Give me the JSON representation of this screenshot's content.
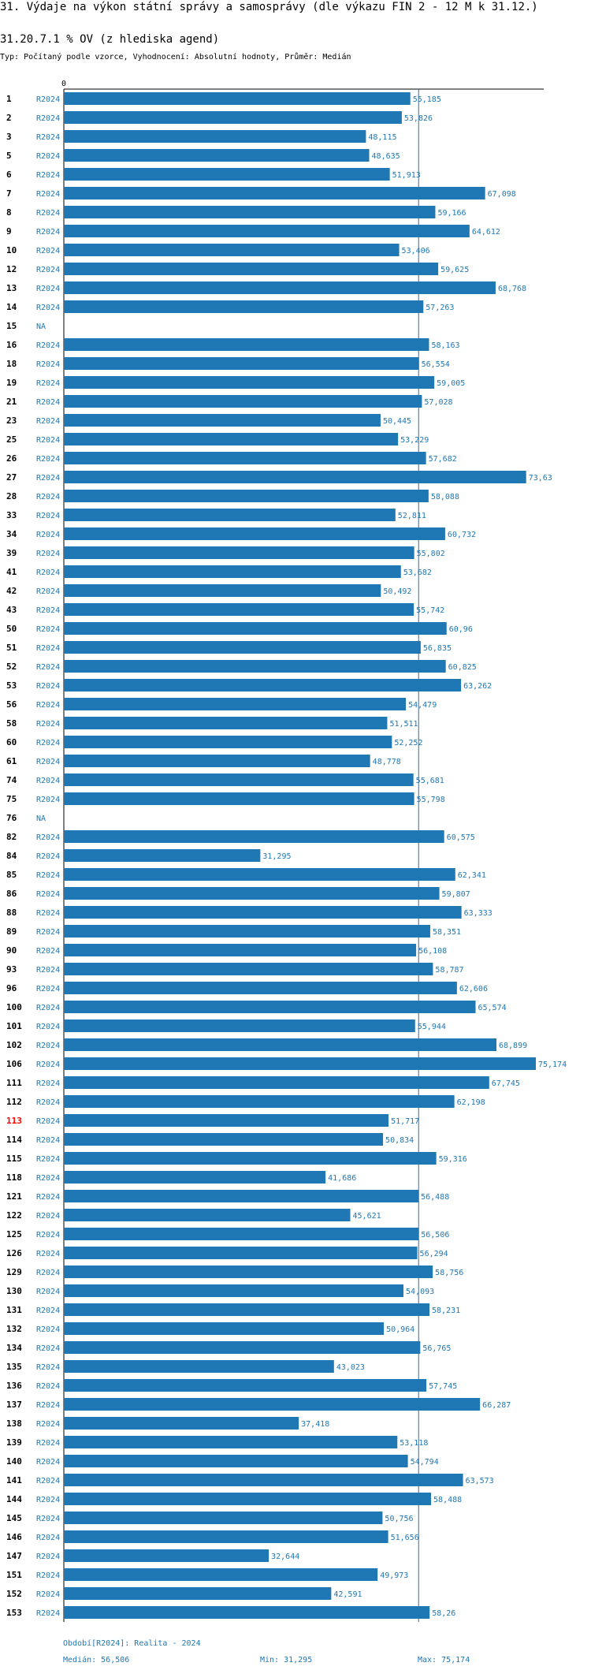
{
  "header": {
    "title": "31. Výdaje na výkon státní správy a samosprávy (dle výkazu FIN 2 - 12 M k 31.12.)",
    "subtitle": "31.20.7.1 % OV (z hlediska agend)",
    "type_line": "Typ: Počítaný podle vzorce, Vyhodnocení: Absolutní hodnoty, Průměr: Medián"
  },
  "chart_data": {
    "type": "bar",
    "orientation": "horizontal",
    "title": "31.20.7.1 % OV (z hlediska agend)",
    "x_tick_label": "0",
    "xlim": [
      0,
      75.174
    ],
    "reference_line": {
      "name": "Medián",
      "value": 56.506
    },
    "highlight_id": "113",
    "colors": {
      "bar": "#1f77b4",
      "highlight": "#ff0000",
      "median_line": "#1f77b4"
    },
    "rows": [
      {
        "id": "1",
        "period": "R2024",
        "value": 55.185,
        "label": "55,185"
      },
      {
        "id": "2",
        "period": "R2024",
        "value": 53.826,
        "label": "53,826"
      },
      {
        "id": "3",
        "period": "R2024",
        "value": 48.115,
        "label": "48,115"
      },
      {
        "id": "5",
        "period": "R2024",
        "value": 48.635,
        "label": "48,635"
      },
      {
        "id": "6",
        "period": "R2024",
        "value": 51.913,
        "label": "51,913"
      },
      {
        "id": "7",
        "period": "R2024",
        "value": 67.098,
        "label": "67,098"
      },
      {
        "id": "8",
        "period": "R2024",
        "value": 59.166,
        "label": "59,166"
      },
      {
        "id": "9",
        "period": "R2024",
        "value": 64.612,
        "label": "64,612"
      },
      {
        "id": "10",
        "period": "R2024",
        "value": 53.406,
        "label": "53,406"
      },
      {
        "id": "12",
        "period": "R2024",
        "value": 59.625,
        "label": "59,625"
      },
      {
        "id": "13",
        "period": "R2024",
        "value": 68.768,
        "label": "68,768"
      },
      {
        "id": "14",
        "period": "R2024",
        "value": 57.263,
        "label": "57,263"
      },
      {
        "id": "15",
        "period": "NA",
        "value": null,
        "label": ""
      },
      {
        "id": "16",
        "period": "R2024",
        "value": 58.163,
        "label": "58,163"
      },
      {
        "id": "18",
        "period": "R2024",
        "value": 56.554,
        "label": "56,554"
      },
      {
        "id": "19",
        "period": "R2024",
        "value": 59.005,
        "label": "59,005"
      },
      {
        "id": "21",
        "period": "R2024",
        "value": 57.028,
        "label": "57,028"
      },
      {
        "id": "23",
        "period": "R2024",
        "value": 50.445,
        "label": "50,445"
      },
      {
        "id": "25",
        "period": "R2024",
        "value": 53.229,
        "label": "53,229"
      },
      {
        "id": "26",
        "period": "R2024",
        "value": 57.682,
        "label": "57,682"
      },
      {
        "id": "27",
        "period": "R2024",
        "value": 73.63,
        "label": "73,63"
      },
      {
        "id": "28",
        "period": "R2024",
        "value": 58.088,
        "label": "58,088"
      },
      {
        "id": "33",
        "period": "R2024",
        "value": 52.811,
        "label": "52,811"
      },
      {
        "id": "34",
        "period": "R2024",
        "value": 60.732,
        "label": "60,732"
      },
      {
        "id": "39",
        "period": "R2024",
        "value": 55.802,
        "label": "55,802"
      },
      {
        "id": "41",
        "period": "R2024",
        "value": 53.682,
        "label": "53,682"
      },
      {
        "id": "42",
        "period": "R2024",
        "value": 50.492,
        "label": "50,492"
      },
      {
        "id": "43",
        "period": "R2024",
        "value": 55.742,
        "label": "55,742"
      },
      {
        "id": "50",
        "period": "R2024",
        "value": 60.96,
        "label": "60,96"
      },
      {
        "id": "51",
        "period": "R2024",
        "value": 56.835,
        "label": "56,835"
      },
      {
        "id": "52",
        "period": "R2024",
        "value": 60.825,
        "label": "60,825"
      },
      {
        "id": "53",
        "period": "R2024",
        "value": 63.262,
        "label": "63,262"
      },
      {
        "id": "56",
        "period": "R2024",
        "value": 54.479,
        "label": "54,479"
      },
      {
        "id": "58",
        "period": "R2024",
        "value": 51.511,
        "label": "51,511"
      },
      {
        "id": "60",
        "period": "R2024",
        "value": 52.252,
        "label": "52,252"
      },
      {
        "id": "61",
        "period": "R2024",
        "value": 48.778,
        "label": "48,778"
      },
      {
        "id": "74",
        "period": "R2024",
        "value": 55.681,
        "label": "55,681"
      },
      {
        "id": "75",
        "period": "R2024",
        "value": 55.798,
        "label": "55,798"
      },
      {
        "id": "76",
        "period": "NA",
        "value": null,
        "label": ""
      },
      {
        "id": "82",
        "period": "R2024",
        "value": 60.575,
        "label": "60,575"
      },
      {
        "id": "84",
        "period": "R2024",
        "value": 31.295,
        "label": "31,295"
      },
      {
        "id": "85",
        "period": "R2024",
        "value": 62.341,
        "label": "62,341"
      },
      {
        "id": "86",
        "period": "R2024",
        "value": 59.807,
        "label": "59,807"
      },
      {
        "id": "88",
        "period": "R2024",
        "value": 63.333,
        "label": "63,333"
      },
      {
        "id": "89",
        "period": "R2024",
        "value": 58.351,
        "label": "58,351"
      },
      {
        "id": "90",
        "period": "R2024",
        "value": 56.108,
        "label": "56,108"
      },
      {
        "id": "93",
        "period": "R2024",
        "value": 58.787,
        "label": "58,787"
      },
      {
        "id": "96",
        "period": "R2024",
        "value": 62.606,
        "label": "62,606"
      },
      {
        "id": "100",
        "period": "R2024",
        "value": 65.574,
        "label": "65,574"
      },
      {
        "id": "101",
        "period": "R2024",
        "value": 55.944,
        "label": "55,944"
      },
      {
        "id": "102",
        "period": "R2024",
        "value": 68.899,
        "label": "68,899"
      },
      {
        "id": "106",
        "period": "R2024",
        "value": 75.174,
        "label": "75,174"
      },
      {
        "id": "111",
        "period": "R2024",
        "value": 67.745,
        "label": "67,745"
      },
      {
        "id": "112",
        "period": "R2024",
        "value": 62.198,
        "label": "62,198"
      },
      {
        "id": "113",
        "period": "R2024",
        "value": 51.717,
        "label": "51,717"
      },
      {
        "id": "114",
        "period": "R2024",
        "value": 50.834,
        "label": "50,834"
      },
      {
        "id": "115",
        "period": "R2024",
        "value": 59.316,
        "label": "59,316"
      },
      {
        "id": "118",
        "period": "R2024",
        "value": 41.686,
        "label": "41,686"
      },
      {
        "id": "121",
        "period": "R2024",
        "value": 56.488,
        "label": "56,488"
      },
      {
        "id": "122",
        "period": "R2024",
        "value": 45.621,
        "label": "45,621"
      },
      {
        "id": "125",
        "period": "R2024",
        "value": 56.506,
        "label": "56,506"
      },
      {
        "id": "126",
        "period": "R2024",
        "value": 56.294,
        "label": "56,294"
      },
      {
        "id": "129",
        "period": "R2024",
        "value": 58.756,
        "label": "58,756"
      },
      {
        "id": "130",
        "period": "R2024",
        "value": 54.093,
        "label": "54,093"
      },
      {
        "id": "131",
        "period": "R2024",
        "value": 58.231,
        "label": "58,231"
      },
      {
        "id": "132",
        "period": "R2024",
        "value": 50.964,
        "label": "50,964"
      },
      {
        "id": "134",
        "period": "R2024",
        "value": 56.765,
        "label": "56,765"
      },
      {
        "id": "135",
        "period": "R2024",
        "value": 43.023,
        "label": "43,023"
      },
      {
        "id": "136",
        "period": "R2024",
        "value": 57.745,
        "label": "57,745"
      },
      {
        "id": "137",
        "period": "R2024",
        "value": 66.287,
        "label": "66,287"
      },
      {
        "id": "138",
        "period": "R2024",
        "value": 37.418,
        "label": "37,418"
      },
      {
        "id": "139",
        "period": "R2024",
        "value": 53.118,
        "label": "53,118"
      },
      {
        "id": "140",
        "period": "R2024",
        "value": 54.794,
        "label": "54,794"
      },
      {
        "id": "141",
        "period": "R2024",
        "value": 63.573,
        "label": "63,573"
      },
      {
        "id": "144",
        "period": "R2024",
        "value": 58.488,
        "label": "58,488"
      },
      {
        "id": "145",
        "period": "R2024",
        "value": 50.756,
        "label": "50,756"
      },
      {
        "id": "146",
        "period": "R2024",
        "value": 51.656,
        "label": "51,656"
      },
      {
        "id": "147",
        "period": "R2024",
        "value": 32.644,
        "label": "32,644"
      },
      {
        "id": "151",
        "period": "R2024",
        "value": 49.973,
        "label": "49,973"
      },
      {
        "id": "152",
        "period": "R2024",
        "value": 42.591,
        "label": "42,591"
      },
      {
        "id": "153",
        "period": "R2024",
        "value": 58.26,
        "label": "58,26"
      }
    ]
  },
  "footer": {
    "period": "Období[R2024]: Realita - 2024",
    "median": "Medián: 56,506",
    "min": "Min: 31,295",
    "max": "Max: 75,174"
  }
}
